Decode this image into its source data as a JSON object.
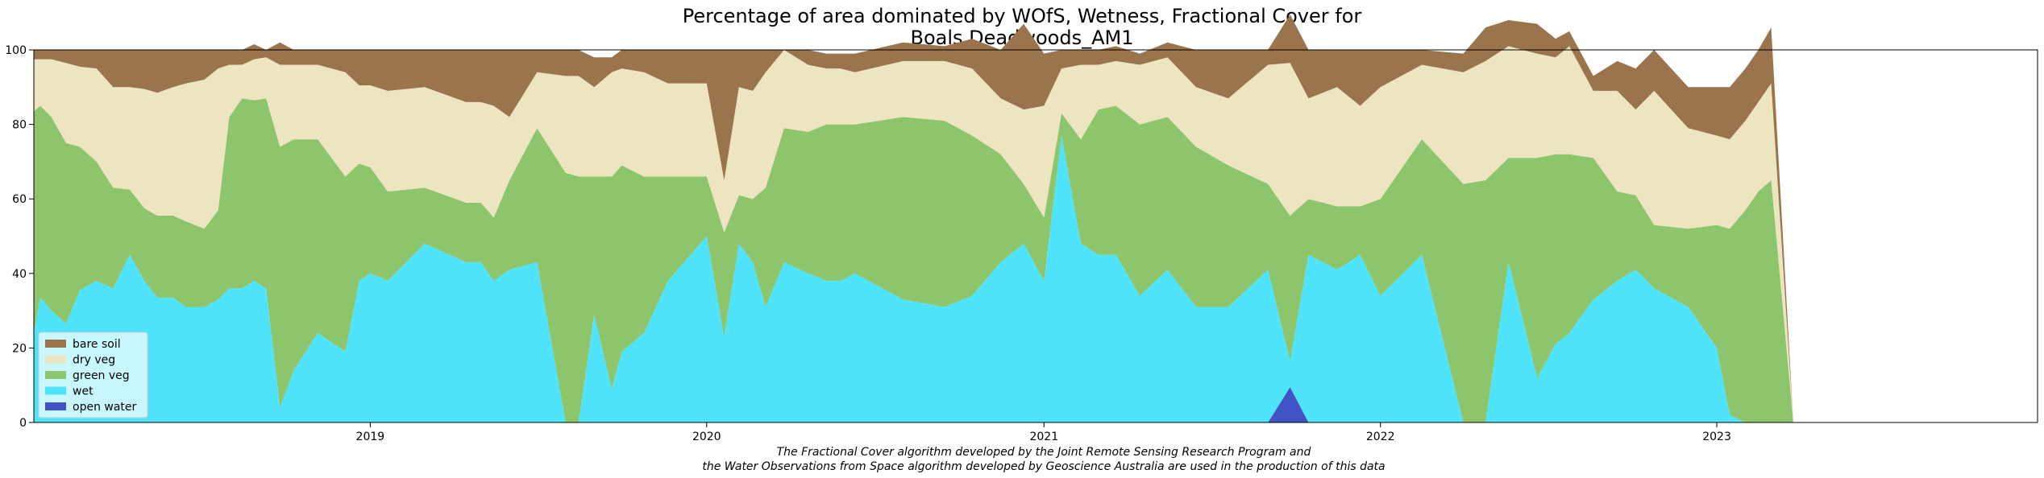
{
  "chart_data": {
    "type": "area",
    "stacked": true,
    "title_lines": [
      "Percentage of area dominated by WOfS, Wetness, Fractional Cover for",
      "Boals Deadwoods_AM1"
    ],
    "xlabel": "",
    "ylabel": "",
    "x_range": [
      "2018-01-01",
      "2023-12-15"
    ],
    "ylim": [
      0,
      100
    ],
    "yticks": [
      0,
      20,
      40,
      60,
      80,
      100
    ],
    "xticks": [
      {
        "date": "2019-01-01",
        "label": "2019"
      },
      {
        "date": "2020-01-01",
        "label": "2020"
      },
      {
        "date": "2021-01-01",
        "label": "2021"
      },
      {
        "date": "2022-01-01",
        "label": "2022"
      },
      {
        "date": "2023-01-01",
        "label": "2023"
      }
    ],
    "grid": false,
    "legend_position": "lower-left",
    "legend_order": [
      "bare soil",
      "dry veg",
      "green veg",
      "wet",
      "open water"
    ],
    "colors": {
      "bare soil": "#99744c",
      "dry veg": "#ede4c0",
      "green veg": "#8dc56c",
      "wet": "#4fe3fc",
      "open water": "#4253c6",
      "legend_bg": "#e6fbff"
    },
    "series_names": [
      "open water",
      "wet",
      "green veg",
      "dry veg",
      "bare soil"
    ],
    "dates": [
      "2018-01-01",
      "2018-01-08",
      "2018-01-20",
      "2018-02-05",
      "2018-02-20",
      "2018-03-10",
      "2018-03-28",
      "2018-04-15",
      "2018-05-01",
      "2018-05-15",
      "2018-06-01",
      "2018-06-15",
      "2018-07-05",
      "2018-07-20",
      "2018-08-01",
      "2018-08-15",
      "2018-08-28",
      "2018-09-10",
      "2018-09-25",
      "2018-10-10",
      "2018-11-05",
      "2018-12-05",
      "2018-12-20",
      "2019-01-01",
      "2019-01-20",
      "2019-03-01",
      "2019-04-15",
      "2019-05-01",
      "2019-05-15",
      "2019-06-01",
      "2019-07-01",
      "2019-08-01",
      "2019-08-15",
      "2019-09-01",
      "2019-09-20",
      "2019-10-01",
      "2019-10-25",
      "2019-11-20",
      "2020-01-01",
      "2020-01-20",
      "2020-02-05",
      "2020-02-20",
      "2020-03-05",
      "2020-03-25",
      "2020-04-20",
      "2020-05-10",
      "2020-05-25",
      "2020-06-10",
      "2020-08-01",
      "2020-09-15",
      "2020-10-15",
      "2020-11-15",
      "2020-12-10",
      "2021-01-01",
      "2021-01-20",
      "2021-02-10",
      "2021-03-01",
      "2021-03-20",
      "2021-04-15",
      "2021-05-15",
      "2021-06-15",
      "2021-07-20",
      "2021-09-01",
      "2021-09-25",
      "2021-10-15",
      "2021-11-15",
      "2021-12-10",
      "2022-01-01",
      "2022-02-15",
      "2022-04-01",
      "2022-04-25",
      "2022-05-20",
      "2022-06-20",
      "2022-07-10",
      "2022-07-25",
      "2022-08-20",
      "2022-09-15",
      "2022-10-05",
      "2022-10-25",
      "2022-12-01",
      "2023-01-01",
      "2023-01-15",
      "2023-02-01",
      "2023-02-15",
      "2023-03-01",
      "2023-03-25",
      "2023-04-15",
      "2023-05-05",
      "2023-06-15",
      "2023-07-25",
      "2023-08-15",
      "2023-08-30",
      "2023-09-15",
      "2023-10-01",
      "2023-11-01",
      "2023-11-25",
      "2023-12-15"
    ],
    "series": [
      {
        "name": "open water",
        "values": [
          0,
          0,
          0,
          0,
          0,
          0,
          0,
          0,
          0,
          0,
          0,
          0,
          0,
          0,
          0,
          0,
          0,
          0,
          0,
          0,
          0,
          0,
          0,
          0,
          0,
          0,
          0,
          0,
          0,
          0,
          0,
          0,
          0,
          0,
          0,
          0,
          0,
          0,
          0,
          0,
          0,
          0,
          0,
          0,
          0,
          0,
          0,
          0,
          0,
          0,
          0,
          0,
          0,
          0,
          0,
          0,
          0,
          0,
          0,
          0,
          0,
          0,
          0,
          9.5,
          0,
          0,
          0,
          0,
          0,
          0,
          0,
          0,
          0,
          0,
          0,
          0,
          0,
          0,
          0,
          0,
          0,
          0,
          0,
          0,
          0,
          0,
          0,
          0,
          0,
          0,
          0,
          0,
          0,
          0,
          0,
          0,
          0
        ]
      },
      {
        "name": "wet",
        "values": [
          24,
          33.5,
          30,
          26.5,
          35.5,
          38,
          36,
          45,
          38,
          33.5,
          33.5,
          31,
          31,
          33,
          36,
          36,
          38,
          36,
          4,
          14,
          24,
          19,
          38,
          40,
          38,
          48,
          43,
          43,
          38,
          41,
          43,
          0,
          0,
          29,
          9,
          19,
          24,
          38,
          50,
          23,
          48,
          43,
          31,
          43,
          40,
          38,
          38,
          40,
          33,
          31,
          34,
          43,
          48,
          38,
          77,
          48,
          45,
          45,
          34,
          41,
          31,
          31,
          41,
          7,
          45,
          41,
          45,
          34,
          45,
          0,
          0,
          43,
          12,
          21,
          24,
          33,
          38,
          41,
          36,
          31,
          20,
          2,
          0,
          0,
          0,
          0,
          0,
          0,
          0,
          0,
          0,
          0,
          0,
          0,
          0,
          0,
          0
        ]
      },
      {
        "name": "green veg",
        "values": [
          59.5,
          51.5,
          52,
          48.5,
          38.5,
          32,
          27,
          17.5,
          19.5,
          22,
          22,
          23,
          21,
          24,
          46,
          51,
          48.5,
          51,
          70,
          62,
          52,
          47,
          31.5,
          28.5,
          24,
          15,
          16,
          16,
          17,
          24,
          36,
          67,
          66,
          37,
          57,
          50,
          42,
          28,
          16,
          28,
          13,
          17,
          32,
          36,
          38,
          42,
          42,
          40,
          49,
          50,
          43,
          29,
          16,
          17,
          6,
          28,
          39,
          40,
          46,
          41,
          43,
          38,
          23,
          39,
          15,
          17,
          13,
          26,
          31,
          64,
          65,
          28,
          59,
          51,
          48,
          38,
          24,
          20,
          17,
          21,
          33,
          50,
          57,
          62,
          65,
          0,
          0,
          0,
          0,
          0,
          0,
          0,
          0,
          0,
          0,
          0,
          0
        ]
      },
      {
        "name": "dry veg",
        "values": [
          14,
          12.5,
          15.5,
          21.5,
          21.5,
          25,
          27,
          27.5,
          32,
          33,
          34.5,
          37,
          40,
          38,
          14,
          9,
          11,
          11,
          22,
          20,
          20,
          28,
          21,
          22,
          27,
          27,
          27,
          27,
          30,
          17,
          15,
          26,
          27,
          24,
          28,
          26,
          28,
          25,
          25,
          14,
          29,
          29,
          31,
          21,
          18,
          15,
          15,
          14,
          15,
          16,
          18,
          15,
          20,
          30,
          12,
          20,
          12,
          12,
          16,
          16,
          16,
          18,
          32,
          41,
          27,
          32,
          27,
          30,
          20,
          30,
          32,
          30,
          28,
          26,
          29,
          18,
          27,
          23,
          36,
          27,
          24,
          24,
          24,
          24,
          26,
          0,
          0,
          0,
          0,
          0,
          0,
          0,
          0,
          0,
          0,
          0,
          0
        ]
      },
      {
        "name": "bare soil",
        "values": [
          2.5,
          2.5,
          2.5,
          3.5,
          4.5,
          5,
          10,
          10,
          10.5,
          11.5,
          10,
          9,
          8,
          5,
          4,
          4,
          4,
          2,
          6,
          4,
          4,
          6,
          9.5,
          9.5,
          11,
          10,
          14,
          14,
          15,
          18,
          6,
          7,
          7,
          8,
          4,
          5,
          6,
          9,
          9,
          35,
          10,
          11,
          6,
          0,
          4,
          4,
          4,
          5,
          5,
          4,
          8,
          13,
          23,
          14,
          5,
          4,
          4,
          4,
          3,
          4,
          10,
          13,
          4,
          13,
          13,
          10,
          15,
          10,
          4,
          5,
          9,
          7,
          8,
          5,
          4,
          4,
          8,
          11,
          11,
          11,
          13,
          14,
          14,
          14,
          15,
          0,
          0,
          0,
          0,
          0,
          0,
          0,
          0,
          0,
          0,
          0,
          0
        ]
      }
    ]
  },
  "footnote_lines": [
    "The Fractional Cover algorithm developed by the Joint Remote Sensing Research Program and",
    "the Water Observations from Space algorithm developed by Geoscience Australia are used in the production of this data"
  ]
}
